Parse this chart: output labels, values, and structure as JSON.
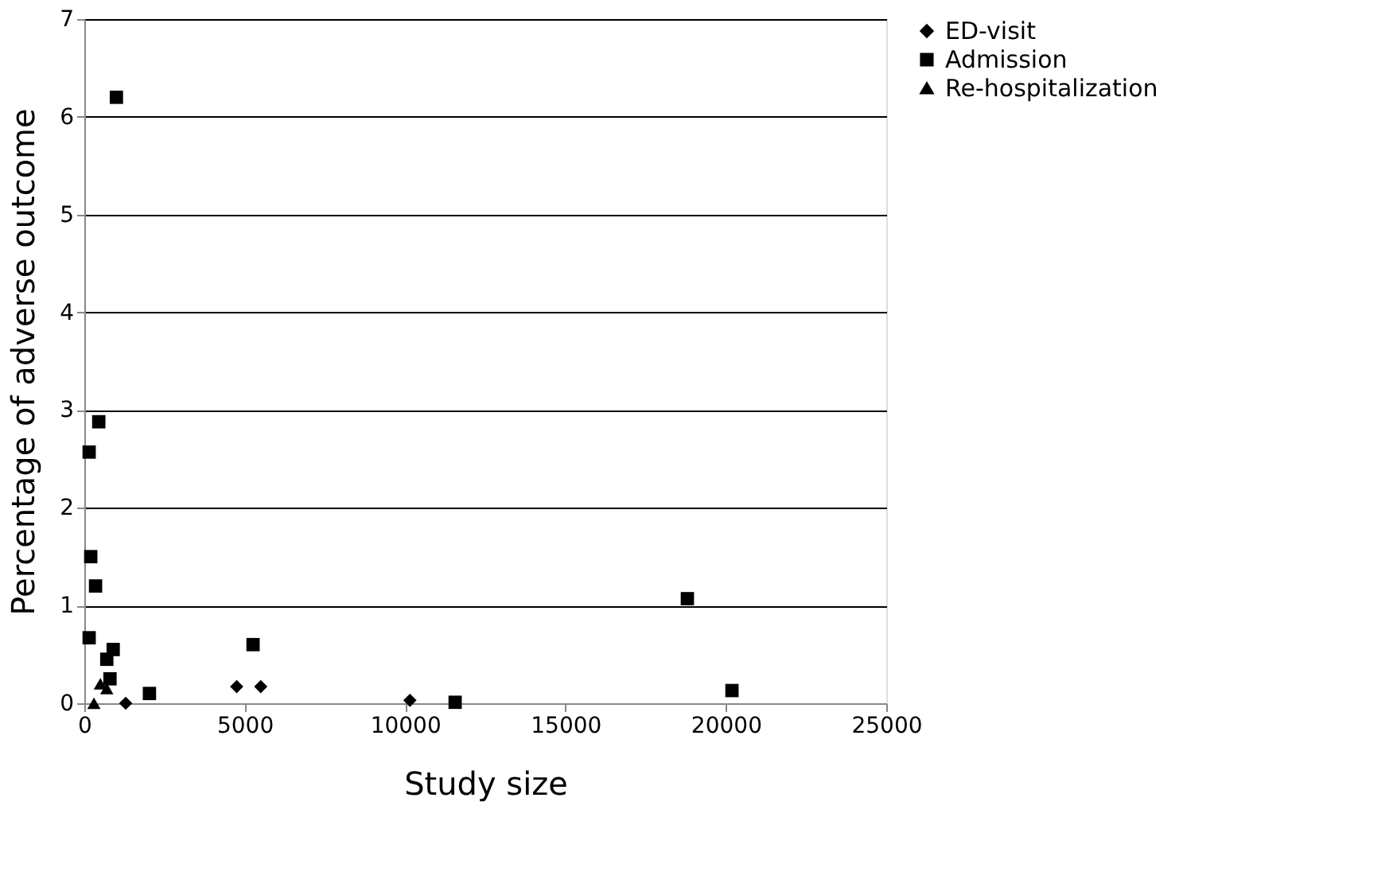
{
  "chart_data": {
    "type": "scatter",
    "xlabel": "Study size",
    "ylabel": "Percentage of adverse outcome",
    "xlim": [
      0,
      25000
    ],
    "xticks": [
      0,
      5000,
      10000,
      15000,
      20000,
      25000
    ],
    "ylim": [
      0,
      7
    ],
    "yticks": [
      0,
      1,
      2,
      3,
      4,
      5,
      6,
      7
    ],
    "grid": "y",
    "legend": "right",
    "series": [
      {
        "name": "ED-visit",
        "color": "#000000",
        "marker": "diamond",
        "x": [
          1290,
          4750,
          5500,
          10150
        ],
        "values": [
          0.0,
          0.17,
          0.17,
          0.03
        ]
      },
      {
        "name": "Admission",
        "color": "#000000",
        "marker": "square",
        "x": [
          1000,
          450,
          150,
          200,
          350,
          150,
          700,
          900,
          800,
          2030,
          5260,
          18800,
          20190,
          11560
        ],
        "values": [
          6.2,
          2.88,
          2.57,
          1.5,
          1.2,
          0.67,
          0.45,
          0.55,
          0.25,
          0.1,
          0.6,
          1.07,
          0.13,
          0.01
        ]
      },
      {
        "name": "Re-hospitalization",
        "color": "#000000",
        "marker": "triangle",
        "x": [
          300,
          500,
          700
        ],
        "values": [
          0.0,
          0.2,
          0.15
        ]
      }
    ]
  }
}
